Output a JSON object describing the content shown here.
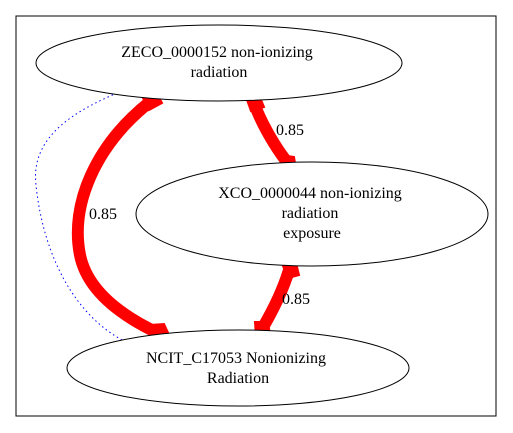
{
  "nodes": {
    "zeco": {
      "lines": [
        "ZECO_0000152 non-ionizing",
        "radiation"
      ]
    },
    "xco": {
      "lines": [
        "XCO_0000044 non-ionizing",
        "radiation",
        "exposure"
      ]
    },
    "ncit": {
      "lines": [
        "NCIT_C17053 Nonionizing",
        "Radiation"
      ]
    }
  },
  "edges": {
    "zeco_xco": {
      "label": "0.85"
    },
    "zeco_ncit": {
      "label": "0.85"
    },
    "xco_ncit": {
      "label": "0.85"
    }
  },
  "colors": {
    "edge": "#ff0000",
    "dotted": "#0000ff",
    "stroke": "#000000"
  }
}
